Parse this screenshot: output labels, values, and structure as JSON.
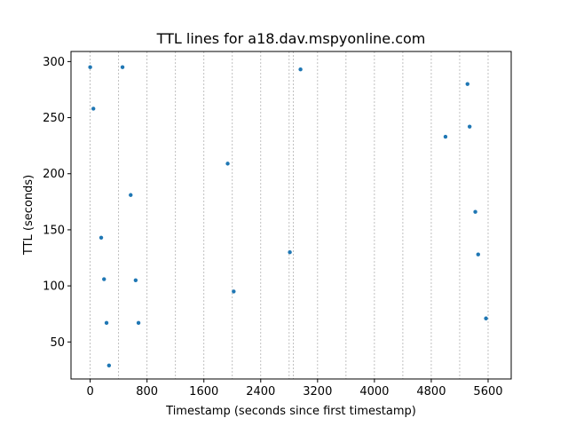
{
  "chart_data": {
    "type": "scatter",
    "title": "TTL lines for a18.dav.mspyonline.com",
    "xlabel": "Timestamp (seconds since first timestamp)",
    "ylabel": "TTL (seconds)",
    "xlim": [
      -270,
      5925
    ],
    "ylim": [
      17,
      309
    ],
    "xticks": [
      0,
      800,
      1600,
      2400,
      3200,
      4000,
      4800,
      5600
    ],
    "yticks": [
      50,
      100,
      150,
      200,
      250,
      300
    ],
    "grid": "vertical dashed lines",
    "vlines": [
      0,
      400,
      800,
      1200,
      1600,
      2000,
      2400,
      2800,
      2860,
      3200,
      3600,
      4000,
      4400,
      4800,
      5200,
      5600
    ],
    "point_color": "#1f77b4",
    "points": [
      {
        "x": 0,
        "y": 295
      },
      {
        "x": 45,
        "y": 258
      },
      {
        "x": 155,
        "y": 143
      },
      {
        "x": 195,
        "y": 106
      },
      {
        "x": 230,
        "y": 67
      },
      {
        "x": 265,
        "y": 29
      },
      {
        "x": 455,
        "y": 295
      },
      {
        "x": 570,
        "y": 181
      },
      {
        "x": 640,
        "y": 105
      },
      {
        "x": 680,
        "y": 67
      },
      {
        "x": 1935,
        "y": 209
      },
      {
        "x": 2020,
        "y": 95
      },
      {
        "x": 2810,
        "y": 130
      },
      {
        "x": 2960,
        "y": 293
      },
      {
        "x": 5000,
        "y": 233
      },
      {
        "x": 5310,
        "y": 280
      },
      {
        "x": 5340,
        "y": 242
      },
      {
        "x": 5420,
        "y": 166
      },
      {
        "x": 5460,
        "y": 128
      },
      {
        "x": 5570,
        "y": 71
      }
    ]
  }
}
